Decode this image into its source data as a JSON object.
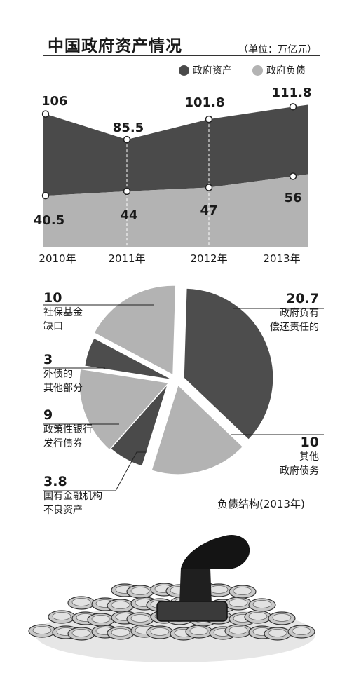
{
  "title": "中国政府资产情况",
  "unit": "（单位：万亿元）",
  "legend": {
    "assets": "政府资产",
    "liabilities": "政府负债"
  },
  "colors": {
    "assets": "#4a4a4a",
    "liabilities": "#b3b3b3",
    "text": "#1a1a1a"
  },
  "chart_data": [
    {
      "type": "area",
      "title": "中国政府资产情况",
      "unit": "万亿元",
      "categories": [
        "2010年",
        "2011年",
        "2012年",
        "2013年"
      ],
      "series": [
        {
          "name": "政府资产",
          "values": [
            106,
            85.5,
            101.8,
            111.8
          ]
        },
        {
          "name": "政府负债",
          "values": [
            40.5,
            44,
            47,
            56
          ]
        }
      ],
      "value_labels": {
        "assets": [
          "106",
          "85.5",
          "101.8",
          "111.8"
        ],
        "liabilities": [
          "40.5",
          "44",
          "47",
          "56"
        ]
      },
      "legend_position": "top-right"
    },
    {
      "type": "pie",
      "title": "负债结构(2013年)",
      "slices": [
        {
          "label_lines": [
            "政府负有",
            "偿还责任的"
          ],
          "value": 20.7,
          "display": "20.7"
        },
        {
          "label_lines": [
            "其他",
            "政府债务"
          ],
          "value": 10,
          "display": "10"
        },
        {
          "label_lines": [
            "国有金融机构",
            "不良资产"
          ],
          "value": 3.8,
          "display": "3.8"
        },
        {
          "label_lines": [
            "政策性银行",
            "发行债券"
          ],
          "value": 9,
          "display": "9"
        },
        {
          "label_lines": [
            "外债的",
            "其他部分"
          ],
          "value": 3,
          "display": "3"
        },
        {
          "label_lines": [
            "社保基金",
            "缺口"
          ],
          "value": 10,
          "display": "10"
        }
      ]
    }
  ],
  "pie_labels": {
    "gov_resp": {
      "num": "20.7",
      "l1": "政府负有",
      "l2": "偿还责任的"
    },
    "other_gov": {
      "num": "10",
      "l1": "其他",
      "l2": "政府债务"
    },
    "soe": {
      "num": "3.8",
      "l1": "国有金融机构",
      "l2": "不良资产"
    },
    "policy": {
      "num": "9",
      "l1": "政策性银行",
      "l2": "发行债券"
    },
    "foreign": {
      "num": "3",
      "l1": "外债的",
      "l2": "其他部分"
    },
    "social": {
      "num": "10",
      "l1": "社保基金",
      "l2": "缺口"
    }
  },
  "pie_caption": "负债结构(2013年)",
  "illustration": "coin-pile-with-stamp"
}
